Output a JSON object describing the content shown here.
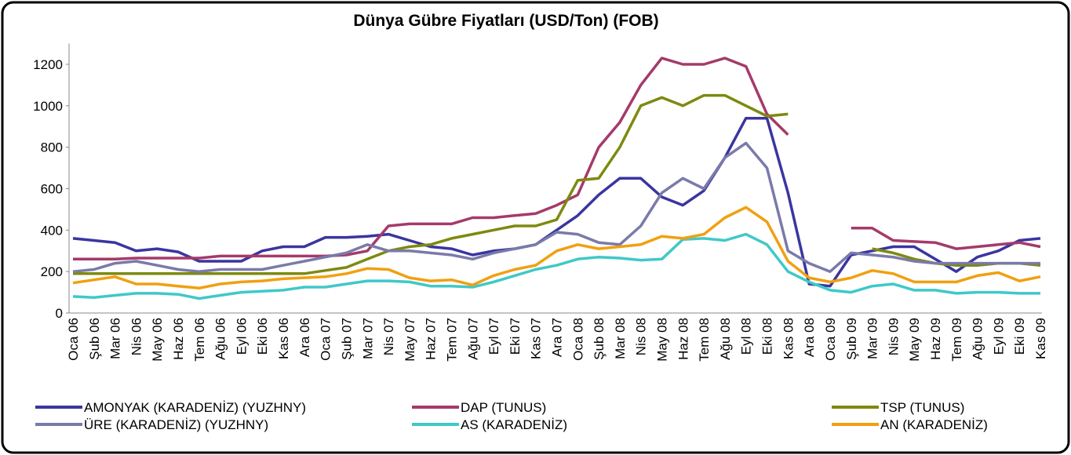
{
  "chart_data": {
    "type": "line",
    "title": "Dünya Gübre Fiyatları (USD/Ton) (FOB)",
    "categories": [
      "Oca 06",
      "Şub 06",
      "Mar 06",
      "Nis 06",
      "May 06",
      "Haz 06",
      "Tem 06",
      "Ağu 06",
      "Eyl 06",
      "Eki 06",
      "Kas 06",
      "Ara 06",
      "Oca 07",
      "Şub 07",
      "Mar 07",
      "Nis 07",
      "May 07",
      "Haz 07",
      "Tem 07",
      "Ağu 07",
      "Eyl 07",
      "Eki 07",
      "Kas 07",
      "Ara 07",
      "Oca 08",
      "Şub 08",
      "Mar 08",
      "Nis 08",
      "May 08",
      "Haz 08",
      "Tem 08",
      "Ağu 08",
      "Eyl 08",
      "Eki 08",
      "Kas 08",
      "Ara 08",
      "Oca 09",
      "Şub 09",
      "Mar 09",
      "Nis 09",
      "May 09",
      "Haz 09",
      "Tem 09",
      "Ağu 09",
      "Eyl 09",
      "Eki 09",
      "Kas 09"
    ],
    "ylim": [
      0,
      1300
    ],
    "yticks": [
      0,
      200,
      400,
      600,
      800,
      1000,
      1200
    ],
    "series": [
      {
        "name": "AMONYAK (KARADENİZ) (YUZHNY)",
        "color": "#3a35a0",
        "values": [
          360,
          350,
          340,
          300,
          310,
          295,
          250,
          250,
          250,
          300,
          320,
          320,
          365,
          365,
          370,
          380,
          350,
          320,
          310,
          280,
          300,
          310,
          330,
          400,
          470,
          570,
          650,
          650,
          560,
          520,
          590,
          750,
          940,
          940,
          580,
          140,
          130,
          280,
          300,
          320,
          320,
          260,
          200,
          270,
          300,
          350,
          360
        ]
      },
      {
        "name": "DAP (TUNUS)",
        "color": "#a53a6a",
        "values": [
          260,
          260,
          260,
          265,
          265,
          265,
          265,
          275,
          275,
          275,
          275,
          275,
          275,
          280,
          300,
          420,
          430,
          430,
          430,
          460,
          460,
          470,
          480,
          520,
          570,
          800,
          920,
          1100,
          1230,
          1200,
          1200,
          1230,
          1190,
          960,
          860,
          null,
          null,
          410,
          410,
          350,
          345,
          340,
          310,
          320,
          330,
          340,
          320
        ]
      },
      {
        "name": "TSP (TUNUS)",
        "color": "#7d8a10",
        "values": [
          190,
          190,
          190,
          190,
          190,
          190,
          190,
          190,
          190,
          190,
          190,
          190,
          205,
          220,
          260,
          300,
          320,
          330,
          360,
          380,
          400,
          420,
          420,
          450,
          640,
          650,
          800,
          1000,
          1040,
          1000,
          1050,
          1050,
          1000,
          950,
          960,
          null,
          null,
          null,
          310,
          290,
          260,
          240,
          230,
          230,
          240,
          240,
          230
        ]
      },
      {
        "name": "ÜRE (KARADENİZ) (YUZHNY)",
        "color": "#7a7aaa",
        "values": [
          200,
          210,
          240,
          250,
          230,
          210,
          200,
          210,
          210,
          210,
          230,
          250,
          270,
          290,
          330,
          300,
          300,
          290,
          280,
          260,
          290,
          310,
          330,
          390,
          380,
          340,
          330,
          420,
          580,
          650,
          600,
          750,
          820,
          700,
          300,
          240,
          200,
          290,
          280,
          270,
          250,
          240,
          240,
          240,
          240,
          240,
          240
        ]
      },
      {
        "name": "AS (KARADENİZ)",
        "color": "#40c8c8",
        "values": [
          80,
          75,
          85,
          95,
          95,
          90,
          70,
          85,
          100,
          105,
          110,
          125,
          125,
          140,
          155,
          155,
          150,
          130,
          130,
          125,
          150,
          180,
          210,
          230,
          260,
          270,
          265,
          255,
          260,
          355,
          360,
          350,
          380,
          330,
          200,
          150,
          110,
          100,
          130,
          140,
          110,
          110,
          95,
          100,
          100,
          95,
          95
        ]
      },
      {
        "name": "AN (KARADENİZ)",
        "color": "#f0a010",
        "values": [
          145,
          160,
          175,
          140,
          140,
          130,
          120,
          140,
          150,
          155,
          165,
          170,
          175,
          190,
          215,
          210,
          170,
          155,
          160,
          135,
          180,
          210,
          230,
          300,
          330,
          310,
          320,
          330,
          370,
          360,
          380,
          460,
          510,
          440,
          250,
          170,
          150,
          170,
          205,
          190,
          150,
          150,
          150,
          180,
          195,
          155,
          175
        ]
      }
    ]
  }
}
